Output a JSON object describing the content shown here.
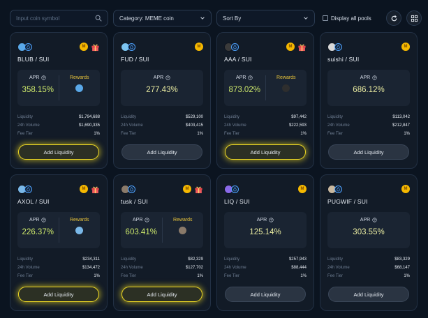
{
  "search": {
    "placeholder": "Input coin symbol"
  },
  "category": {
    "label": "Category: MEME coin"
  },
  "sort": {
    "label": "Sort By"
  },
  "display_all": {
    "label": "Display all pools"
  },
  "labels": {
    "apr": "APR",
    "rewards": "Rewards",
    "liquidity": "Liquidity",
    "volume": "24h Volume",
    "fee": "Fee Tier",
    "add": "Add Liquidity"
  },
  "colors": {
    "background": "#0b1420",
    "card": "#121b27",
    "accent_yellow": "#ecd724",
    "apr_text": "#d8e27a"
  },
  "pools": [
    {
      "pair": "BLUB / SUI",
      "apr": "358.15%",
      "liquidity": "$1,794,688",
      "volume": "$1,690,335",
      "fee": "1%",
      "rewards": true,
      "gift": true,
      "highlight": true,
      "token_color": "#5aa8e8",
      "reward_color": "#5aa8e8"
    },
    {
      "pair": "FUD / SUI",
      "apr": "277.43%",
      "liquidity": "$529,100",
      "volume": "$403,415",
      "fee": "1%",
      "rewards": false,
      "gift": false,
      "highlight": false,
      "token_color": "#7cc4f0",
      "reward_color": ""
    },
    {
      "pair": "AAA / SUI",
      "apr": "873.02%",
      "liquidity": "$97,442",
      "volume": "$222,593",
      "fee": "1%",
      "rewards": true,
      "gift": true,
      "highlight": true,
      "token_color": "#3a3a3a",
      "reward_color": "#2e2e2e"
    },
    {
      "pair": "suishi / SUI",
      "apr": "686.12%",
      "liquidity": "$113,042",
      "volume": "$212,847",
      "fee": "1%",
      "rewards": false,
      "gift": false,
      "highlight": false,
      "token_color": "#d8d8d8",
      "reward_color": ""
    },
    {
      "pair": "AXOL / SUI",
      "apr": "226.37%",
      "liquidity": "$234,311",
      "volume": "$134,472",
      "fee": "1%",
      "rewards": true,
      "gift": true,
      "highlight": true,
      "token_color": "#7ab8e8",
      "reward_color": "#7ab8e8"
    },
    {
      "pair": "tusk / SUI",
      "apr": "603.41%",
      "liquidity": "$82,329",
      "volume": "$127,702",
      "fee": "1%",
      "rewards": true,
      "gift": true,
      "highlight": true,
      "token_color": "#8a7a6a",
      "reward_color": "#8a7a6a"
    },
    {
      "pair": "LIQ / SUI",
      "apr": "125.14%",
      "liquidity": "$257,943",
      "volume": "$88,444",
      "fee": "1%",
      "rewards": false,
      "gift": false,
      "highlight": false,
      "token_color": "#8a6ae8",
      "reward_color": ""
    },
    {
      "pair": "PUGWIF / SUI",
      "apr": "303.55%",
      "liquidity": "$83,329",
      "volume": "$68,147",
      "fee": "1%",
      "rewards": false,
      "gift": false,
      "highlight": false,
      "token_color": "#c8b8a0",
      "reward_color": ""
    }
  ]
}
